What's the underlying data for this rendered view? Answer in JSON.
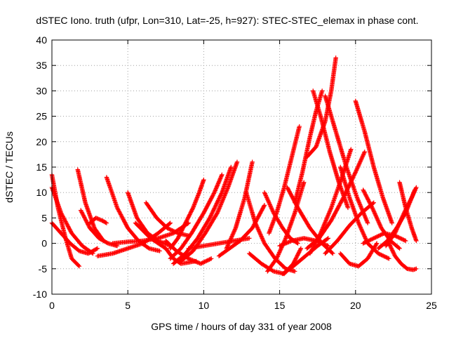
{
  "chart_data": {
    "type": "scatter",
    "title": "dSTEC Iono. truth (ufpr, Lon=310, Lat=-25, h=927): STEC-STEC_elemax in phase cont.",
    "xlabel": "GPS time / hours of day 331 of year 2008",
    "ylabel": "dSTEC  / TECUs",
    "xlim": [
      0,
      25
    ],
    "ylim": [
      -10,
      40
    ],
    "xticks": [
      0,
      5,
      10,
      15,
      20,
      25
    ],
    "yticks": [
      -10,
      -5,
      0,
      5,
      10,
      15,
      20,
      25,
      30,
      35,
      40
    ],
    "grid": true,
    "marker": "plus",
    "color": "#ff0000",
    "series": [
      {
        "x": [
          0.0,
          0.4,
          0.9,
          1.3,
          1.8
        ],
        "y": [
          13.5,
          7.0,
          1.0,
          -3.0,
          -4.5
        ]
      },
      {
        "x": [
          0.0,
          0.6,
          1.2,
          1.8,
          2.4,
          3.0
        ],
        "y": [
          4.0,
          2.0,
          0.0,
          -1.5,
          -2.0,
          -1.0
        ]
      },
      {
        "x": [
          0.0,
          0.6,
          1.3,
          2.0,
          2.7
        ],
        "y": [
          11.0,
          6.0,
          2.0,
          -0.5,
          -2.0
        ]
      },
      {
        "x": [
          1.7,
          2.2,
          2.8,
          3.4
        ],
        "y": [
          14.5,
          8.0,
          3.0,
          0.5
        ]
      },
      {
        "x": [
          1.9,
          2.5,
          3.1,
          3.7,
          4.3
        ],
        "y": [
          6.5,
          3.0,
          1.0,
          0.0,
          -0.5
        ]
      },
      {
        "x": [
          2.5,
          2.9,
          3.3,
          3.6
        ],
        "y": [
          4.0,
          5.0,
          4.5,
          4.0
        ]
      },
      {
        "x": [
          3.6,
          4.3,
          5.0,
          5.7,
          6.4,
          7.1
        ],
        "y": [
          13.0,
          7.0,
          3.0,
          0.5,
          -1.0,
          -1.5
        ]
      },
      {
        "x": [
          5.0,
          5.6,
          6.3,
          7.0,
          7.8
        ],
        "y": [
          10.0,
          5.0,
          2.0,
          0.5,
          -0.5
        ]
      },
      {
        "x": [
          4.0,
          5.0,
          6.0,
          7.0,
          8.0,
          9.0
        ],
        "y": [
          0.0,
          0.3,
          0.5,
          1.0,
          2.0,
          4.0
        ]
      },
      {
        "x": [
          6.2,
          6.9,
          7.6,
          8.3,
          9.0
        ],
        "y": [
          8.0,
          5.0,
          3.0,
          2.0,
          1.5
        ]
      },
      {
        "x": [
          3.0,
          4.0,
          5.0,
          6.0,
          7.0,
          7.8
        ],
        "y": [
          -2.5,
          -2.0,
          -1.0,
          0.0,
          2.0,
          4.0
        ]
      },
      {
        "x": [
          5.5,
          6.5,
          7.5,
          8.0,
          8.5,
          9.5
        ],
        "y": [
          4.0,
          1.0,
          -1.0,
          -3.0,
          -4.0,
          -3.5
        ]
      },
      {
        "x": [
          7.8,
          8.3,
          8.8,
          9.3,
          9.7,
          10.0
        ],
        "y": [
          -1.0,
          1.0,
          4.0,
          7.0,
          10.0,
          12.5
        ]
      },
      {
        "x": [
          7.8,
          8.5,
          9.2,
          10.0,
          10.7,
          11.2
        ],
        "y": [
          -3.0,
          -1.0,
          2.0,
          6.0,
          10.0,
          13.5
        ]
      },
      {
        "x": [
          8.0,
          8.8,
          9.6,
          10.4,
          11.2,
          11.8
        ],
        "y": [
          -4.0,
          -2.0,
          1.0,
          5.0,
          10.0,
          15.0
        ]
      },
      {
        "x": [
          8.5,
          9.3,
          10.1,
          10.9,
          11.6,
          12.2
        ],
        "y": [
          -3.5,
          -1.5,
          2.0,
          6.0,
          11.0,
          16.0
        ]
      },
      {
        "x": [
          7.5,
          8.2,
          9.0,
          9.8,
          10.5
        ],
        "y": [
          0.5,
          -1.5,
          -3.0,
          -4.0,
          -3.0
        ]
      },
      {
        "x": [
          11.0,
          11.7,
          12.4,
          13.2,
          14.0
        ],
        "y": [
          -2.5,
          -1.0,
          0.5,
          3.0,
          7.5
        ]
      },
      {
        "x": [
          11.5,
          12.1,
          12.7,
          13.2
        ],
        "y": [
          -1.0,
          3.0,
          9.0,
          16.0
        ]
      },
      {
        "x": [
          9.0,
          10.0,
          11.0,
          12.0,
          13.0
        ],
        "y": [
          -1.0,
          -0.5,
          0.0,
          0.5,
          1.0
        ]
      },
      {
        "x": [
          12.8,
          13.4,
          14.0,
          14.7,
          15.4,
          16.0
        ],
        "y": [
          10.0,
          4.0,
          0.0,
          -3.0,
          -5.0,
          -5.5
        ]
      },
      {
        "x": [
          13.0,
          13.8,
          14.6,
          15.3,
          15.9,
          16.4
        ],
        "y": [
          -2.0,
          -4.0,
          -5.5,
          -6.0,
          -4.0,
          -1.0
        ]
      },
      {
        "x": [
          14.2,
          14.8,
          15.4,
          16.0,
          16.6
        ],
        "y": [
          -5.5,
          -3.0,
          1.0,
          6.0,
          12.0
        ]
      },
      {
        "x": [
          14.0,
          14.6,
          15.2,
          15.7,
          16.2
        ],
        "y": [
          10.0,
          6.0,
          3.0,
          1.0,
          0.0
        ]
      },
      {
        "x": [
          14.3,
          14.8,
          15.3,
          15.8,
          16.3
        ],
        "y": [
          2.0,
          6.0,
          11.0,
          17.0,
          23.0
        ]
      },
      {
        "x": [
          15.2,
          15.9,
          16.7,
          17.5,
          18.2
        ],
        "y": [
          -6.0,
          -4.5,
          -2.5,
          -0.5,
          1.0
        ]
      },
      {
        "x": [
          15.5,
          16.2,
          17.0,
          17.8,
          18.5
        ],
        "y": [
          11.0,
          7.0,
          3.0,
          0.0,
          -2.0
        ]
      },
      {
        "x": [
          15.0,
          15.8,
          16.6,
          17.4,
          18.2
        ],
        "y": [
          -0.5,
          0.5,
          1.0,
          0.5,
          -0.5
        ]
      },
      {
        "x": [
          16.0,
          16.5,
          17.0,
          17.4,
          17.8
        ],
        "y": [
          8.0,
          14.0,
          21.0,
          26.0,
          30.0
        ]
      },
      {
        "x": [
          16.8,
          17.4,
          18.0,
          18.4,
          18.7
        ],
        "y": [
          17.0,
          19.0,
          24.0,
          30.0,
          36.5
        ]
      },
      {
        "x": [
          17.2,
          17.7,
          18.3,
          18.9,
          19.5
        ],
        "y": [
          30.0,
          25.0,
          18.0,
          12.0,
          7.0
        ]
      },
      {
        "x": [
          16.8,
          17.6,
          18.4,
          19.2,
          20.0,
          20.6
        ],
        "y": [
          -1.0,
          1.0,
          4.5,
          9.0,
          14.0,
          18.0
        ]
      },
      {
        "x": [
          17.0,
          17.7,
          18.4,
          19.1,
          19.7
        ],
        "y": [
          -2.0,
          2.0,
          7.0,
          13.0,
          18.5
        ]
      },
      {
        "x": [
          18.0,
          18.7,
          19.4,
          20.1,
          20.8
        ],
        "y": [
          29.0,
          22.0,
          15.0,
          9.0,
          4.0
        ]
      },
      {
        "x": [
          18.0,
          18.8,
          19.6,
          20.4,
          21.2
        ],
        "y": [
          -2.0,
          0.5,
          3.5,
          6.0,
          8.0
        ]
      },
      {
        "x": [
          19.0,
          19.6,
          20.2,
          20.8,
          21.5,
          22.2
        ],
        "y": [
          15.0,
          9.0,
          4.0,
          0.0,
          -2.0,
          -3.0
        ]
      },
      {
        "x": [
          19.0,
          19.6,
          20.2,
          20.8,
          21.4
        ],
        "y": [
          -2.0,
          -4.0,
          -4.5,
          -3.0,
          0.0
        ]
      },
      {
        "x": [
          20.0,
          20.6,
          21.2,
          21.8,
          22.4
        ],
        "y": [
          28.0,
          22.0,
          15.0,
          9.0,
          4.0
        ]
      },
      {
        "x": [
          20.5,
          21.1,
          21.7,
          22.3,
          22.9
        ],
        "y": [
          10.5,
          7.0,
          3.0,
          0.5,
          -1.0
        ]
      },
      {
        "x": [
          20.5,
          21.2,
          21.9,
          22.6,
          23.3
        ],
        "y": [
          0.0,
          1.0,
          2.0,
          1.5,
          0.5
        ]
      },
      {
        "x": [
          21.5,
          22.1,
          22.7,
          23.3,
          23.9
        ],
        "y": [
          -1.0,
          0.5,
          3.0,
          6.0,
          10.5
        ]
      },
      {
        "x": [
          22.0,
          22.6,
          23.2,
          23.7,
          24.0
        ],
        "y": [
          -0.5,
          2.0,
          6.0,
          9.0,
          11.0
        ]
      },
      {
        "x": [
          22.9,
          23.3,
          23.7,
          24.0
        ],
        "y": [
          12.0,
          7.0,
          3.0,
          0.5
        ]
      },
      {
        "x": [
          22.2,
          22.6,
          23.0,
          23.4,
          23.8,
          24.0
        ],
        "y": [
          0.0,
          -2.5,
          -4.0,
          -5.0,
          -5.2,
          -5.0
        ]
      }
    ]
  }
}
